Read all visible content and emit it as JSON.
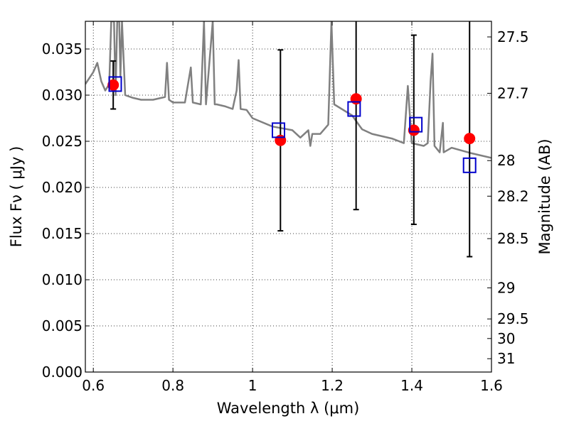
{
  "chart_data": {
    "type": "scatter",
    "xlabel": "Wavelength  λ (μm)",
    "ylabel": "Flux  Fν  ( μJy )",
    "y2label": "Magnitude (AB)",
    "xlim": [
      0.58,
      1.6
    ],
    "ylim": [
      0.0,
      0.038
    ],
    "grid": true,
    "x_ticks": [
      0.6,
      0.8,
      1.0,
      1.2,
      1.4,
      1.6
    ],
    "x_tick_labels": [
      "0.6",
      "0.8",
      "1",
      "1.2",
      "1.4",
      "1.6"
    ],
    "y_ticks": [
      0.0,
      0.005,
      0.01,
      0.015,
      0.02,
      0.025,
      0.03,
      0.035
    ],
    "y_tick_labels": [
      "0.000",
      "0.005",
      "0.010",
      "0.015",
      "0.020",
      "0.025",
      "0.030",
      "0.035"
    ],
    "mag_ticks": [
      "27.5",
      "27.7",
      "28",
      "28.2",
      "28.5",
      "29",
      "29.5",
      "30",
      "31"
    ],
    "colors": {
      "model": "#808080",
      "observed": "#ff0000",
      "model_photometry": "#0000cc",
      "errorbar": "#000000"
    },
    "series": [
      {
        "marker": "circle",
        "color": "#ff0000",
        "x": [
          0.65,
          1.07,
          1.26,
          1.405,
          1.545
        ],
        "y": [
          0.0311,
          0.0251,
          0.0296,
          0.0262,
          0.0253
        ],
        "yerr_low": [
          0.0285,
          0.0153,
          0.0176,
          0.016,
          0.0125
        ],
        "yerr_high": [
          0.0337,
          0.0349,
          0.0385,
          0.0365,
          0.0385
        ]
      },
      {
        "marker": "open-square",
        "color": "#0000cc",
        "x": [
          0.655,
          1.065,
          1.255,
          1.41,
          1.545
        ],
        "y": [
          0.0312,
          0.0262,
          0.0285,
          0.0268,
          0.0224
        ]
      },
      {
        "type": "line",
        "color": "#808080",
        "x": [
          0.58,
          0.6,
          0.61,
          0.62,
          0.63,
          0.64,
          0.645,
          0.652,
          0.656,
          0.66,
          0.665,
          0.668,
          0.672,
          0.68,
          0.7,
          0.72,
          0.75,
          0.78,
          0.785,
          0.79,
          0.8,
          0.83,
          0.845,
          0.85,
          0.87,
          0.878,
          0.883,
          0.9,
          0.905,
          0.91,
          0.93,
          0.95,
          0.96,
          0.965,
          0.97,
          0.985,
          1.0,
          1.05,
          1.1,
          1.12,
          1.14,
          1.145,
          1.15,
          1.17,
          1.19,
          1.198,
          1.205,
          1.25,
          1.275,
          1.3,
          1.35,
          1.38,
          1.39,
          1.4,
          1.43,
          1.44,
          1.447,
          1.452,
          1.457,
          1.47,
          1.478,
          1.48,
          1.5,
          1.55,
          1.6
        ],
        "y": [
          0.0312,
          0.0325,
          0.0335,
          0.0315,
          0.0305,
          0.0312,
          0.038,
          0.038,
          0.03,
          0.038,
          0.038,
          0.032,
          0.038,
          0.03,
          0.0297,
          0.0295,
          0.0295,
          0.0298,
          0.0335,
          0.0295,
          0.0292,
          0.0292,
          0.033,
          0.0292,
          0.029,
          0.038,
          0.029,
          0.038,
          0.029,
          0.029,
          0.0288,
          0.0285,
          0.0305,
          0.0338,
          0.0285,
          0.0284,
          0.0275,
          0.0266,
          0.0262,
          0.0254,
          0.0262,
          0.0245,
          0.0258,
          0.0258,
          0.0268,
          0.038,
          0.029,
          0.0278,
          0.0263,
          0.0258,
          0.0253,
          0.0248,
          0.031,
          0.0248,
          0.0245,
          0.0248,
          0.0315,
          0.0345,
          0.0245,
          0.0238,
          0.027,
          0.0238,
          0.0243,
          0.0237,
          0.0232
        ]
      }
    ]
  }
}
